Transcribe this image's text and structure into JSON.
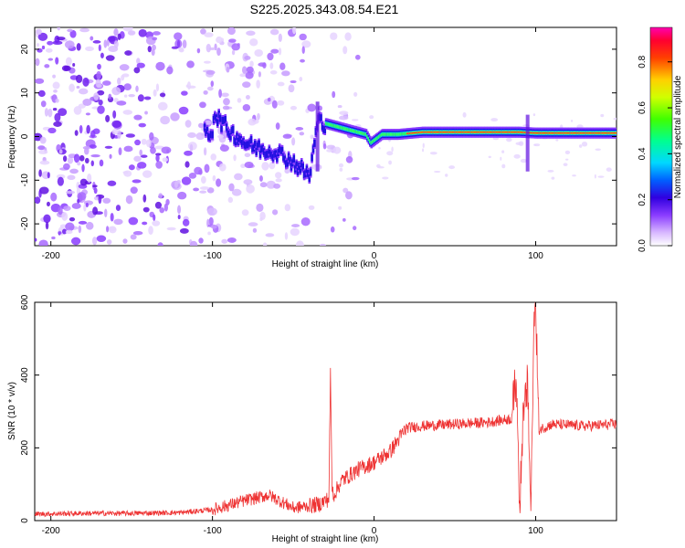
{
  "title": "S225.2025.343.08.54.E21",
  "chart_data": [
    {
      "type": "heatmap",
      "xlabel": "Height of straight line (km)",
      "ylabel": "Frequency (Hz)",
      "xlim": [
        -210,
        150
      ],
      "ylim": [
        -25,
        25
      ],
      "xticks": [
        -200,
        -100,
        0,
        100
      ],
      "yticks": [
        -20,
        -10,
        0,
        10,
        20
      ],
      "colorbar": {
        "label": "Normalized spectral amplitude",
        "range": [
          0.0,
          0.95
        ],
        "ticks": [
          0.0,
          0.2,
          0.4,
          0.6,
          0.8
        ],
        "colors": [
          "#ffffff",
          "#b070ff",
          "#5a00d0",
          "#0000ff",
          "#00c8ff",
          "#00ff80",
          "#80ff00",
          "#ffff00",
          "#ff8000",
          "#ff0000",
          "#ff00a0"
        ]
      },
      "dominant_frequency_track": [
        {
          "x": -100,
          "y": 5.5
        },
        {
          "x": -90,
          "y": 1.5
        },
        {
          "x": -80,
          "y": -1.5
        },
        {
          "x": -70,
          "y": -3.0
        },
        {
          "x": -60,
          "y": -3.5
        },
        {
          "x": -50,
          "y": -6.0
        },
        {
          "x": -40,
          "y": -9.0
        },
        {
          "x": -35,
          "y": 3.5
        },
        {
          "x": -25,
          "y": 2.5
        },
        {
          "x": -15,
          "y": 1.5
        },
        {
          "x": -5,
          "y": 0.5
        },
        {
          "x": -2,
          "y": -1.5
        },
        {
          "x": 5,
          "y": 0.5
        },
        {
          "x": 15,
          "y": 0.5
        },
        {
          "x": 30,
          "y": 1.0
        },
        {
          "x": 60,
          "y": 1.0
        },
        {
          "x": 90,
          "y": 1.0
        },
        {
          "x": 100,
          "y": 0.8
        },
        {
          "x": 150,
          "y": 0.8
        }
      ]
    },
    {
      "type": "line",
      "xlabel": "Height of straight line (km)",
      "ylabel": "SNR (10 * v/v)",
      "xlim": [
        -210,
        150
      ],
      "ylim": [
        0,
        600
      ],
      "xticks": [
        -200,
        -100,
        0,
        100
      ],
      "yticks": [
        0,
        200,
        400,
        600
      ],
      "color": "#ee3333",
      "series": [
        {
          "name": "SNR",
          "x": [
            -210,
            -180,
            -150,
            -120,
            -100,
            -80,
            -65,
            -50,
            -40,
            -34,
            -28,
            -27,
            -26,
            -25,
            -20,
            -10,
            0,
            10,
            20,
            30,
            50,
            70,
            85,
            88,
            90,
            92,
            95,
            97,
            99,
            100,
            102,
            110,
            130,
            150
          ],
          "y": [
            18,
            20,
            20,
            22,
            30,
            55,
            70,
            35,
            40,
            45,
            60,
            400,
            90,
            70,
            110,
            140,
            160,
            190,
            255,
            260,
            265,
            270,
            280,
            400,
            40,
            260,
            380,
            30,
            550,
            600,
            250,
            265,
            260,
            265
          ]
        }
      ]
    }
  ]
}
